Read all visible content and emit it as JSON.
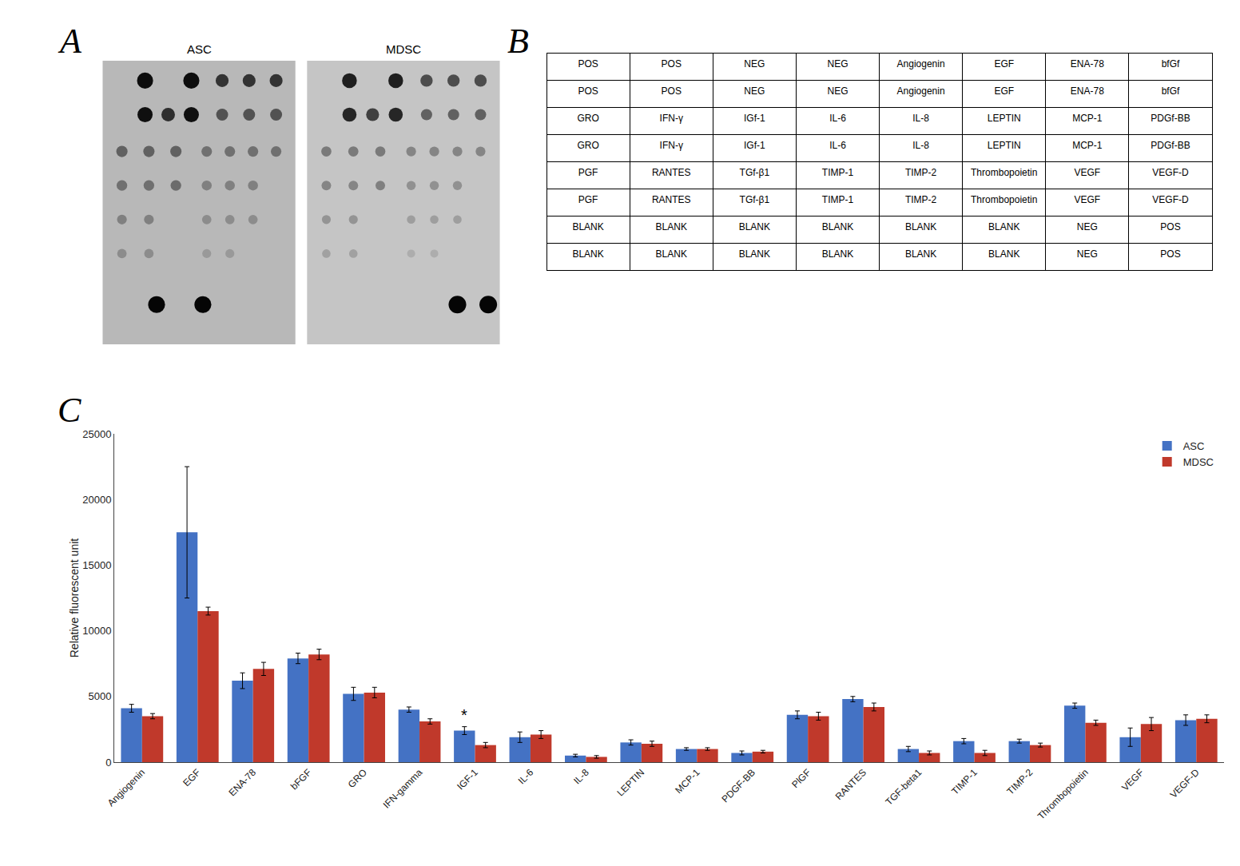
{
  "chart_data": [
    {
      "type": "scatter",
      "title": "ASC",
      "annotations": [
        "A"
      ],
      "x": [
        0.22,
        0.46,
        0.62,
        0.76,
        0.9,
        0.22,
        0.46,
        0.34,
        0.62,
        0.76,
        0.9,
        0.1,
        0.24,
        0.38,
        0.54,
        0.66,
        0.78,
        0.9,
        0.1,
        0.24,
        0.38,
        0.54,
        0.66,
        0.78,
        0.1,
        0.24,
        0.54,
        0.66,
        0.78,
        0.1,
        0.24,
        0.54,
        0.66,
        0.28,
        0.52
      ],
      "y": [
        0.93,
        0.93,
        0.93,
        0.93,
        0.93,
        0.81,
        0.81,
        0.81,
        0.81,
        0.81,
        0.81,
        0.68,
        0.68,
        0.68,
        0.68,
        0.68,
        0.68,
        0.68,
        0.56,
        0.56,
        0.56,
        0.56,
        0.56,
        0.56,
        0.44,
        0.44,
        0.44,
        0.44,
        0.44,
        0.32,
        0.32,
        0.32,
        0.32,
        0.14,
        0.14
      ],
      "sizes": [
        65,
        65,
        42,
        42,
        42,
        58,
        58,
        46,
        36,
        36,
        36,
        32,
        32,
        32,
        28,
        28,
        28,
        28,
        28,
        28,
        28,
        25,
        25,
        25,
        24,
        24,
        22,
        22,
        22,
        22,
        22,
        20,
        20,
        72,
        72
      ],
      "colors": [
        "rgb(5%,5%,5%)",
        "rgb(5%,5%,5%)",
        "rgb(20%,20%,20%)",
        "rgb(20%,20%,20%)",
        "rgb(20%,20%,20%)",
        "rgb(6%,6%,6%)",
        "rgb(6%,6%,6%)",
        "rgb(18%,18%,18%)",
        "rgb(32%,32%,32%)",
        "rgb(32%,32%,32%)",
        "rgb(32%,32%,32%)",
        "rgb(38%,38%,38%)",
        "rgb(38%,38%,38%)",
        "rgb(38%,38%,38%)",
        "rgb(44%,44%,44%)",
        "rgb(44%,44%,44%)",
        "rgb(44%,44%,44%)",
        "rgb(44%,44%,44%)",
        "rgb(44%,44%,44%)",
        "rgb(44%,44%,44%)",
        "rgb(42%,42%,42%)",
        "rgb(50%,50%,50%)",
        "rgb(50%,50%,50%)",
        "rgb(50%,50%,50%)",
        "rgb(50%,50%,50%)",
        "rgb(50%,50%,50%)",
        "rgb(55%,55%,55%)",
        "rgb(55%,55%,55%)",
        "rgb(55%,55%,55%)",
        "rgb(55%,55%,55%)",
        "rgb(55%,55%,55%)",
        "rgb(60%,60%,60%)",
        "rgb(60%,60%,60%)",
        "rgb(2%,2%,2%)",
        "rgb(2%,2%,2%)"
      ],
      "xlim": [
        0,
        1
      ],
      "ylim": [
        0,
        1
      ],
      "tick_labels": false,
      "grid": false
    },
    {
      "type": "scatter",
      "title": "MDSC",
      "x": [
        0.22,
        0.46,
        0.62,
        0.76,
        0.9,
        0.22,
        0.46,
        0.34,
        0.62,
        0.76,
        0.9,
        0.1,
        0.24,
        0.38,
        0.54,
        0.66,
        0.78,
        0.9,
        0.1,
        0.24,
        0.38,
        0.54,
        0.66,
        0.78,
        0.1,
        0.24,
        0.54,
        0.66,
        0.78,
        0.1,
        0.24,
        0.54,
        0.66,
        0.78,
        0.94
      ],
      "y": [
        0.93,
        0.93,
        0.93,
        0.93,
        0.93,
        0.81,
        0.81,
        0.81,
        0.81,
        0.81,
        0.81,
        0.68,
        0.68,
        0.68,
        0.68,
        0.68,
        0.68,
        0.68,
        0.56,
        0.56,
        0.56,
        0.56,
        0.56,
        0.56,
        0.44,
        0.44,
        0.44,
        0.44,
        0.44,
        0.32,
        0.32,
        0.32,
        0.32,
        0.14,
        0.14
      ],
      "sizes": [
        55,
        55,
        38,
        38,
        38,
        50,
        50,
        42,
        32,
        32,
        32,
        26,
        26,
        26,
        24,
        24,
        24,
        24,
        23,
        23,
        23,
        21,
        21,
        21,
        20,
        20,
        18,
        18,
        18,
        18,
        18,
        16,
        16,
        78,
        78
      ],
      "colors": [
        "rgb(12%,12%,12%)",
        "rgb(12%,12%,12%)",
        "rgb(30%,30%,30%)",
        "rgb(30%,30%,30%)",
        "rgb(30%,30%,30%)",
        "rgb(15%,15%,15%)",
        "rgb(15%,15%,15%)",
        "rgb(25%,25%,25%)",
        "rgb(38%,38%,38%)",
        "rgb(38%,38%,38%)",
        "rgb(38%,38%,38%)",
        "rgb(48%,48%,48%)",
        "rgb(48%,48%,48%)",
        "rgb(48%,48%,48%)",
        "rgb(52%,52%,52%)",
        "rgb(52%,52%,52%)",
        "rgb(52%,52%,52%)",
        "rgb(52%,52%,52%)",
        "rgb(52%,52%,52%)",
        "rgb(52%,52%,52%)",
        "rgb(50%,50%,50%)",
        "rgb(57%,57%,57%)",
        "rgb(57%,57%,57%)",
        "rgb(57%,57%,57%)",
        "rgb(58%,58%,58%)",
        "rgb(58%,58%,58%)",
        "rgb(62%,62%,62%)",
        "rgb(62%,62%,62%)",
        "rgb(62%,62%,62%)",
        "rgb(63%,63%,63%)",
        "rgb(63%,63%,63%)",
        "rgb(68%,68%,68%)",
        "rgb(68%,68%,68%)",
        "rgb(2%,2%,2%)",
        "rgb(2%,2%,2%)"
      ],
      "xlim": [
        0,
        1
      ],
      "ylim": [
        0,
        1
      ],
      "tick_labels": false,
      "grid": false
    },
    {
      "type": "table",
      "annotations": [
        "B"
      ],
      "rows": [
        [
          "POS",
          "POS",
          "NEG",
          "NEG",
          "Angiogenin",
          "EGF",
          "ENA-78",
          "bfGf"
        ],
        [
          "POS",
          "POS",
          "NEG",
          "NEG",
          "Angiogenin",
          "EGF",
          "ENA-78",
          "bfGf"
        ],
        [
          "GRO",
          "IFN-γ",
          "IGf-1",
          "IL-6",
          "IL-8",
          "LEPTIN",
          "MCP-1",
          "PDGf-BB"
        ],
        [
          "GRO",
          "IFN-γ",
          "IGf-1",
          "IL-6",
          "IL-8",
          "LEPTIN",
          "MCP-1",
          "PDGf-BB"
        ],
        [
          "PGF",
          "RANTES",
          "TGf-β1",
          "TIMP-1",
          "TIMP-2",
          "Thrombopoietin",
          "VEGF",
          "VEGF-D"
        ],
        [
          "PGF",
          "RANTES",
          "TGf-β1",
          "TIMP-1",
          "TIMP-2",
          "Thrombopoietin",
          "VEGF",
          "VEGF-D"
        ],
        [
          "BLANK",
          "BLANK",
          "BLANK",
          "BLANK",
          "BLANK",
          "BLANK",
          "NEG",
          "POS"
        ],
        [
          "BLANK",
          "BLANK",
          "BLANK",
          "BLANK",
          "BLANK",
          "BLANK",
          "NEG",
          "POS"
        ]
      ]
    },
    {
      "type": "bar",
      "annotations": [
        "C",
        {
          "text": "*",
          "x": "IGF-1",
          "series": "ASC"
        }
      ],
      "categories": [
        "Angiogenin",
        "EGF",
        "ENA-78",
        "bFGF",
        "GRO",
        "IFN-gamma",
        "IGF-1",
        "IL-6",
        "IL-8",
        "LEPTIN",
        "MCP-1",
        "PDGF-BB",
        "PlGF",
        "RANTES",
        "TGF-beta1",
        "TIMP-1",
        "TIMP-2",
        "Thrombopoietin",
        "VEGF",
        "VEGF-D"
      ],
      "series": [
        {
          "name": "ASC",
          "color": "#4472C4",
          "values": [
            4100,
            17500,
            6200,
            7900,
            5200,
            4000,
            2400,
            1900,
            500,
            1500,
            1000,
            700,
            3600,
            4800,
            1000,
            1600,
            1600,
            4300,
            1900,
            3200
          ],
          "errors": [
            300,
            5000,
            600,
            400,
            500,
            200,
            300,
            400,
            100,
            200,
            100,
            150,
            300,
            200,
            200,
            200,
            150,
            200,
            700,
            400
          ]
        },
        {
          "name": "MDSC",
          "color": "#C0392B",
          "values": [
            3500,
            11500,
            7100,
            8200,
            5300,
            3100,
            1300,
            2100,
            400,
            1400,
            1000,
            800,
            3500,
            4200,
            700,
            700,
            1300,
            3000,
            2900,
            3300
          ],
          "errors": [
            200,
            300,
            500,
            400,
            400,
            200,
            200,
            300,
            100,
            200,
            100,
            100,
            300,
            300,
            150,
            200,
            150,
            200,
            500,
            300
          ]
        }
      ],
      "ylabel": "Relative fluorescent unit",
      "ylim": [
        0,
        25000
      ],
      "yticks": [
        0,
        5000,
        10000,
        15000,
        20000,
        25000
      ],
      "grid": false,
      "legend": "upper right"
    }
  ]
}
